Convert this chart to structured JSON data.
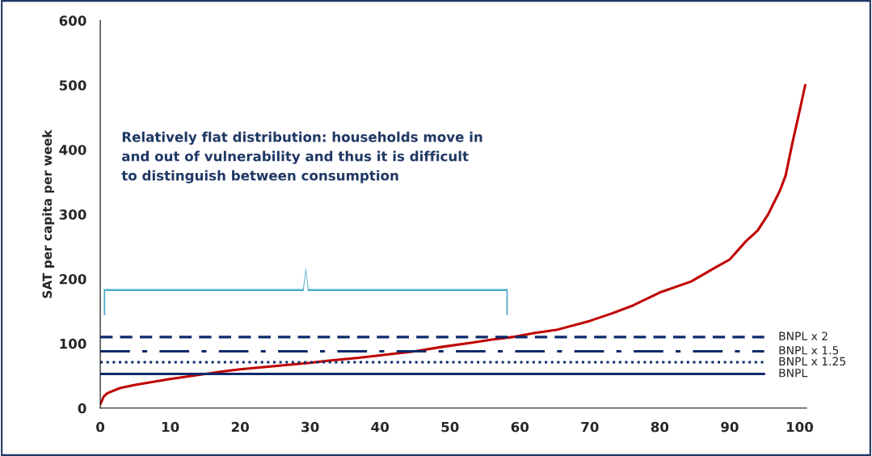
{
  "chart_data": {
    "type": "line",
    "ylabel": "SAT per capita per week",
    "x": [
      0,
      0.5,
      1,
      2.8,
      5,
      10,
      17,
      20,
      25,
      30,
      33,
      37,
      41,
      45,
      49,
      53,
      56,
      58.9,
      62,
      65.2,
      70,
      73,
      76.2,
      80,
      84.5,
      88,
      90,
      92.3,
      94,
      95.5,
      97.2,
      98,
      99,
      100,
      100.8
    ],
    "series": [
      {
        "color": "#c00000",
        "values": [
          6,
          18,
          23,
          31,
          36,
          45,
          56,
          60,
          65,
          70,
          74,
          78,
          83,
          88,
          95,
          101,
          106,
          110,
          116,
          121,
          135,
          146,
          159,
          179,
          196,
          218,
          230,
          258,
          275,
          300,
          337,
          360,
          412,
          460,
          500
        ]
      }
    ],
    "xlim": [
      0,
      101
    ],
    "ylim": [
      0,
      600
    ],
    "xticks": [
      0,
      10,
      20,
      30,
      40,
      50,
      60,
      70,
      80,
      90,
      100
    ],
    "yticks": [
      0,
      100,
      200,
      300,
      400,
      500,
      600
    ],
    "ref_lines": [
      {
        "axis": "y",
        "value": 110,
        "label": "BNPL x 2",
        "color": "#0d2a6b",
        "line_style": "dashed"
      },
      {
        "axis": "y",
        "value": 88,
        "label": "BNPL x 1.5",
        "color": "#0d2a6b",
        "line_style": "dashdot"
      },
      {
        "axis": "y",
        "value": 71,
        "label": "BNPL x 1.25",
        "color": "#0d2a6b",
        "line_style": "dotted"
      },
      {
        "axis": "y",
        "value": 53,
        "label": "BNPL",
        "color": "#0d2a6b",
        "line_style": "solid"
      }
    ],
    "annotations": [
      "Relatively flat distribution: households move in\nand out of vulnerability and thus it is difficult\nto distinguish between consumption"
    ],
    "grid": false,
    "legend": false,
    "marker": "none",
    "line_style": "solid"
  }
}
